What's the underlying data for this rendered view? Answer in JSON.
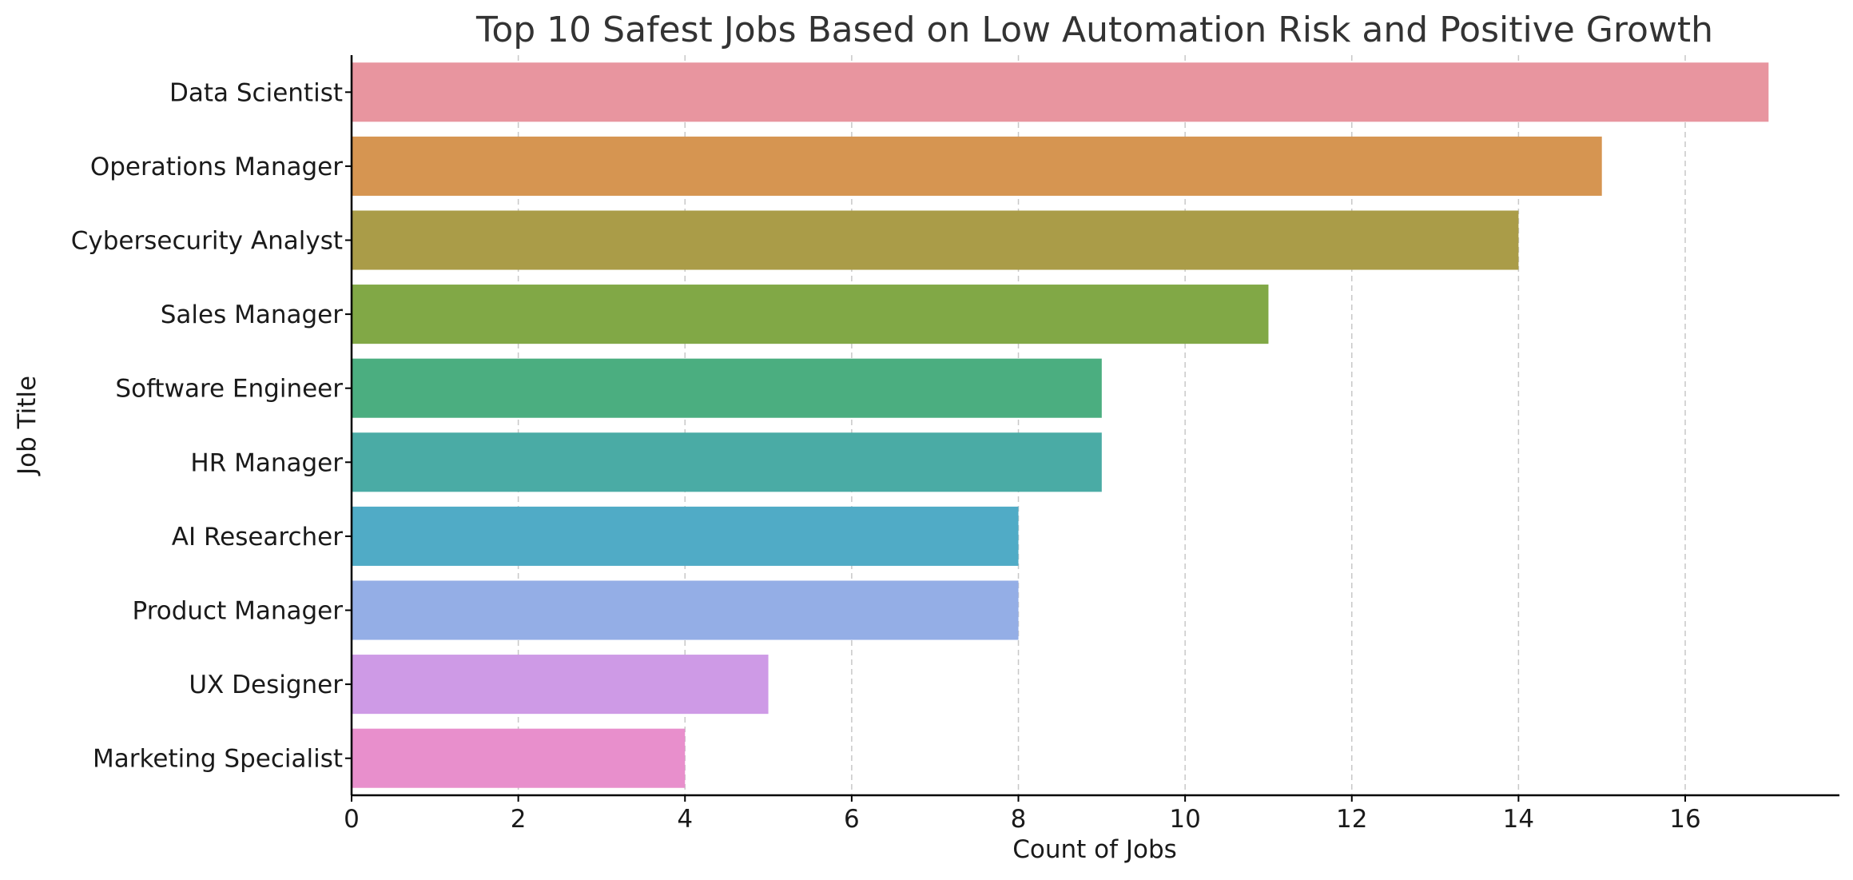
{
  "chart_data": {
    "type": "bar",
    "orientation": "horizontal",
    "title": "Top 10 Safest Jobs Based on Low Automation Risk and Positive Growth",
    "xlabel": "Count of Jobs",
    "ylabel": "Job Title",
    "xlim": [
      0,
      17.85
    ],
    "xticks": [
      0,
      2,
      4,
      6,
      8,
      10,
      12,
      14,
      16
    ],
    "grid": "x-axis, dashed",
    "categories": [
      "Data Scientist",
      "Operations Manager",
      "Cybersecurity Analyst",
      "Sales Manager",
      "Software Engineer",
      "HR Manager",
      "AI Researcher",
      "Product Manager",
      "UX Designer",
      "Marketing Specialist"
    ],
    "values": [
      17,
      15,
      14,
      11,
      9,
      9,
      8,
      8,
      5,
      4
    ],
    "colors": [
      "#e8959f",
      "#d69551",
      "#aa9c48",
      "#81a846",
      "#4bae80",
      "#4aaba5",
      "#50abc6",
      "#94aee6",
      "#ce9ae6",
      "#e88fcc"
    ]
  }
}
